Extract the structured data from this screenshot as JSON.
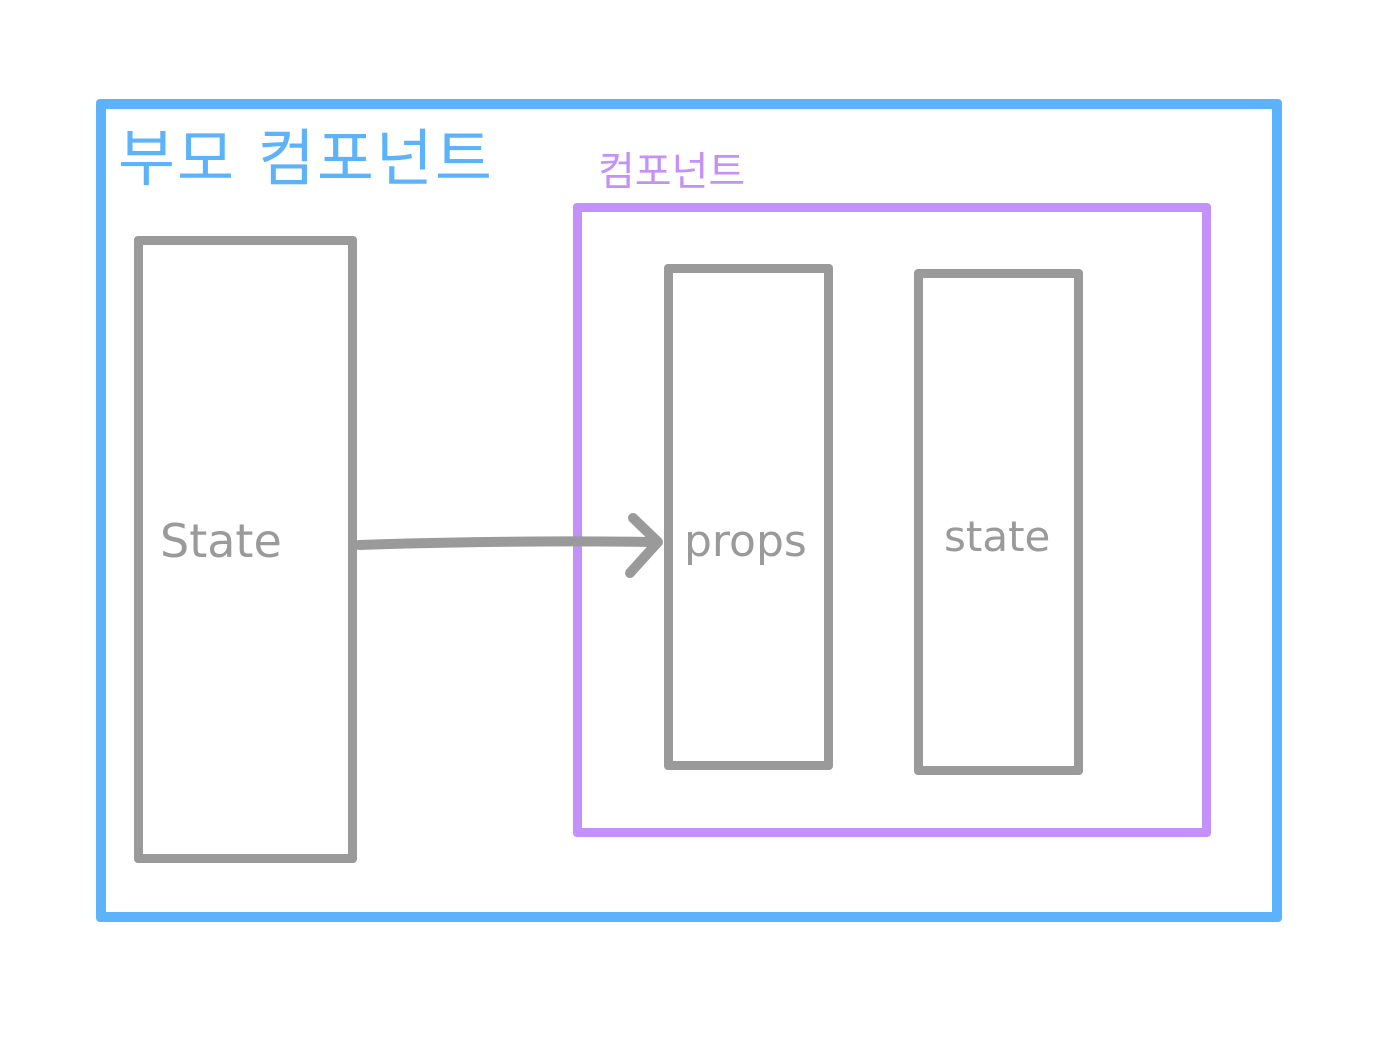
{
  "parent_component": {
    "title": "부모 컴포넌트",
    "color": "#5cb3fb",
    "state_label": "State"
  },
  "child_component": {
    "title": "컴포넌트",
    "color": "#c491fa",
    "props_label": "props",
    "state_label": "state"
  },
  "box_color": "#9a9a9a"
}
